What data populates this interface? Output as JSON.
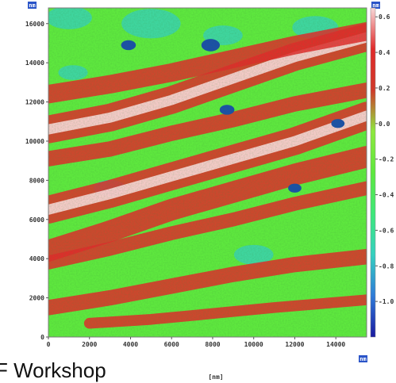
{
  "chart_data": {
    "type": "heatmap",
    "x_unit_badge": "nm",
    "y_unit_badge": "nm",
    "colorbar_unit_badge": "nm",
    "x_axis_label": "[nm]",
    "xlim": [
      0,
      15500
    ],
    "ylim": [
      0,
      16800
    ],
    "x_ticks": [
      "0",
      "2000",
      "4000",
      "6000",
      "8000",
      "10000",
      "12000",
      "14000"
    ],
    "y_ticks": [
      "0",
      "2000",
      "4000",
      "6000",
      "8000",
      "10000",
      "12000",
      "14000",
      "16000"
    ],
    "colorbar_ticks": [
      "0.6",
      "0.4",
      "0.2",
      "0.0",
      "-0.2",
      "-0.4",
      "-0.6",
      "-0.8",
      "-1.0"
    ],
    "colorbar_range": [
      -1.2,
      0.65
    ],
    "colorscale": [
      "#1a1aa0",
      "#2f7bd8",
      "#35d0c0",
      "#3ee87a",
      "#5ee83e",
      "#8ee83e",
      "#d03a2a",
      "#e02a2a",
      "#f8d8d8"
    ],
    "colors": {
      "base": "#5ee83e",
      "ridge": "#e02a2a",
      "peak": "#f8d8d8",
      "dip": "#35d0c0",
      "pit": "#1a4fa8"
    },
    "ridges": [
      {
        "x": [
          0,
          3000,
          6000,
          9000,
          12000,
          15500
        ],
        "y": [
          10600,
          11200,
          12100,
          13200,
          14300,
          15300
        ],
        "width_nm": 900,
        "peak": true
      },
      {
        "x": [
          0,
          3000,
          6000,
          9000,
          12000,
          15500
        ],
        "y": [
          6500,
          7300,
          8200,
          9100,
          10000,
          11300
        ],
        "width_nm": 900,
        "peak": true
      },
      {
        "x": [
          0,
          3000,
          6000,
          9000,
          12000,
          15500
        ],
        "y": [
          12400,
          12900,
          13500,
          14200,
          14900,
          15600
        ],
        "width_nm": 600,
        "peak": false
      },
      {
        "x": [
          0,
          3000,
          6000,
          9000,
          12000,
          15500
        ],
        "y": [
          9100,
          9600,
          10400,
          11100,
          11900,
          12600
        ],
        "width_nm": 500,
        "peak": false
      },
      {
        "x": [
          0,
          3000,
          6000,
          9000,
          12000,
          15500
        ],
        "y": [
          4400,
          5400,
          6500,
          7400,
          8300,
          9200
        ],
        "width_nm": 700,
        "peak": false
      },
      {
        "x": [
          0,
          3000,
          6000,
          9000,
          12000,
          15500
        ],
        "y": [
          3800,
          4500,
          5300,
          6000,
          6800,
          7600
        ],
        "width_nm": 450,
        "peak": false
      },
      {
        "x": [
          0,
          3000,
          6000,
          9000,
          12000,
          15500
        ],
        "y": [
          1500,
          2000,
          2600,
          3200,
          3700,
          4100
        ],
        "width_nm": 500,
        "peak": false
      },
      {
        "x": [
          2000,
          5000,
          8000,
          11000,
          15500
        ],
        "y": [
          700,
          900,
          1200,
          1500,
          1900
        ],
        "width_nm": 350,
        "peak": false
      }
    ],
    "dips": [
      {
        "x": 1000,
        "y": 16300,
        "r_nm": 700
      },
      {
        "x": 5000,
        "y": 16000,
        "r_nm": 900
      },
      {
        "x": 8500,
        "y": 15400,
        "r_nm": 600
      },
      {
        "x": 13000,
        "y": 15800,
        "r_nm": 700
      },
      {
        "x": 1200,
        "y": 13500,
        "r_nm": 450
      },
      {
        "x": 3000,
        "y": 7600,
        "r_nm": 500
      },
      {
        "x": 10000,
        "y": 4200,
        "r_nm": 600
      }
    ],
    "pits": [
      {
        "x": 3900,
        "y": 14900,
        "r_nm": 200
      },
      {
        "x": 7900,
        "y": 14900,
        "r_nm": 250
      },
      {
        "x": 8700,
        "y": 11600,
        "r_nm": 200
      },
      {
        "x": 12000,
        "y": 7600,
        "r_nm": 180
      },
      {
        "x": 14100,
        "y": 10900,
        "r_nm": 180
      }
    ]
  },
  "caption": "F Workshop"
}
